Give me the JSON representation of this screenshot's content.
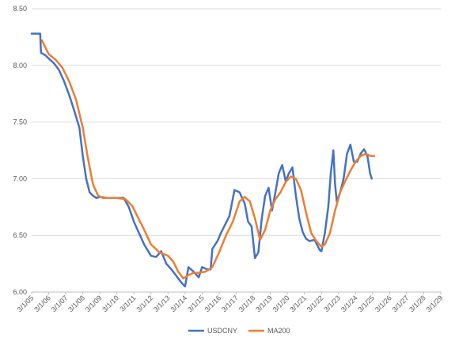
{
  "chart_data": {
    "type": "line",
    "title": "",
    "xlabel": "",
    "ylabel": "",
    "x_range_years": [
      2005.0,
      2029.0
    ],
    "ylim": [
      6.0,
      8.5
    ],
    "y_ticks": [
      {
        "value": 8.5,
        "label": "8.50"
      },
      {
        "value": 8.0,
        "label": "8.00"
      },
      {
        "value": 7.5,
        "label": "7.50"
      },
      {
        "value": 7.0,
        "label": "7.00"
      },
      {
        "value": 6.5,
        "label": "6.50"
      },
      {
        "value": 6.0,
        "label": "6.00"
      }
    ],
    "x_ticks": [
      {
        "year": 2005,
        "label": "3/1/05"
      },
      {
        "year": 2006,
        "label": "3/1/06"
      },
      {
        "year": 2007,
        "label": "3/1/07"
      },
      {
        "year": 2008,
        "label": "3/1/08"
      },
      {
        "year": 2009,
        "label": "3/1/09"
      },
      {
        "year": 2010,
        "label": "3/1/10"
      },
      {
        "year": 2011,
        "label": "3/1/11"
      },
      {
        "year": 2012,
        "label": "3/1/12"
      },
      {
        "year": 2013,
        "label": "3/1/13"
      },
      {
        "year": 2014,
        "label": "3/1/14"
      },
      {
        "year": 2015,
        "label": "3/1/15"
      },
      {
        "year": 2016,
        "label": "3/1/16"
      },
      {
        "year": 2017,
        "label": "3/1/17"
      },
      {
        "year": 2018,
        "label": "3/1/18"
      },
      {
        "year": 2019,
        "label": "3/1/19"
      },
      {
        "year": 2020,
        "label": "3/1/20"
      },
      {
        "year": 2021,
        "label": "3/1/21"
      },
      {
        "year": 2022,
        "label": "3/1/22"
      },
      {
        "year": 2023,
        "label": "3/1/23"
      },
      {
        "year": 2024,
        "label": "3/1/24"
      },
      {
        "year": 2025,
        "label": "3/1/25"
      },
      {
        "year": 2026,
        "label": "3/1/26"
      },
      {
        "year": 2027,
        "label": "3/1/27"
      },
      {
        "year": 2028,
        "label": "3/1/28"
      },
      {
        "year": 2029,
        "label": "3/1/29"
      }
    ],
    "legend_position": "bottom",
    "series": [
      {
        "name": "USDCNY",
        "color": "#4472c4",
        "points": [
          [
            2005.0,
            8.28
          ],
          [
            2005.5,
            8.28
          ],
          [
            2005.55,
            8.11
          ],
          [
            2005.8,
            8.09
          ],
          [
            2006.0,
            8.06
          ],
          [
            2006.3,
            8.02
          ],
          [
            2006.6,
            7.96
          ],
          [
            2006.9,
            7.86
          ],
          [
            2007.2,
            7.74
          ],
          [
            2007.5,
            7.6
          ],
          [
            2007.8,
            7.45
          ],
          [
            2008.0,
            7.2
          ],
          [
            2008.2,
            7.0
          ],
          [
            2008.4,
            6.88
          ],
          [
            2008.6,
            6.85
          ],
          [
            2008.8,
            6.83
          ],
          [
            2009.0,
            6.84
          ],
          [
            2009.5,
            6.83
          ],
          [
            2010.0,
            6.83
          ],
          [
            2010.4,
            6.83
          ],
          [
            2010.7,
            6.75
          ],
          [
            2011.0,
            6.62
          ],
          [
            2011.3,
            6.52
          ],
          [
            2011.6,
            6.42
          ],
          [
            2012.0,
            6.32
          ],
          [
            2012.3,
            6.31
          ],
          [
            2012.6,
            6.36
          ],
          [
            2012.9,
            6.25
          ],
          [
            2013.2,
            6.2
          ],
          [
            2013.5,
            6.14
          ],
          [
            2013.8,
            6.08
          ],
          [
            2014.0,
            6.05
          ],
          [
            2014.2,
            6.22
          ],
          [
            2014.5,
            6.18
          ],
          [
            2014.8,
            6.13
          ],
          [
            2015.0,
            6.22
          ],
          [
            2015.3,
            6.2
          ],
          [
            2015.5,
            6.2
          ],
          [
            2015.6,
            6.38
          ],
          [
            2015.9,
            6.45
          ],
          [
            2016.1,
            6.52
          ],
          [
            2016.3,
            6.58
          ],
          [
            2016.6,
            6.67
          ],
          [
            2016.9,
            6.9
          ],
          [
            2017.2,
            6.88
          ],
          [
            2017.5,
            6.78
          ],
          [
            2017.7,
            6.62
          ],
          [
            2017.9,
            6.58
          ],
          [
            2018.1,
            6.3
          ],
          [
            2018.3,
            6.35
          ],
          [
            2018.5,
            6.65
          ],
          [
            2018.7,
            6.85
          ],
          [
            2018.9,
            6.92
          ],
          [
            2019.1,
            6.72
          ],
          [
            2019.3,
            6.88
          ],
          [
            2019.5,
            7.05
          ],
          [
            2019.7,
            7.12
          ],
          [
            2019.9,
            6.98
          ],
          [
            2020.1,
            7.05
          ],
          [
            2020.3,
            7.1
          ],
          [
            2020.5,
            6.85
          ],
          [
            2020.7,
            6.65
          ],
          [
            2020.9,
            6.53
          ],
          [
            2021.1,
            6.47
          ],
          [
            2021.3,
            6.45
          ],
          [
            2021.6,
            6.46
          ],
          [
            2021.9,
            6.37
          ],
          [
            2022.0,
            6.36
          ],
          [
            2022.2,
            6.52
          ],
          [
            2022.4,
            6.75
          ],
          [
            2022.55,
            7.05
          ],
          [
            2022.7,
            7.25
          ],
          [
            2022.8,
            6.95
          ],
          [
            2022.9,
            6.8
          ],
          [
            2023.1,
            6.88
          ],
          [
            2023.3,
            7.0
          ],
          [
            2023.5,
            7.22
          ],
          [
            2023.7,
            7.3
          ],
          [
            2023.9,
            7.15
          ],
          [
            2024.1,
            7.15
          ],
          [
            2024.3,
            7.22
          ],
          [
            2024.5,
            7.26
          ],
          [
            2024.7,
            7.2
          ],
          [
            2024.85,
            7.05
          ],
          [
            2024.95,
            7.0
          ]
        ]
      },
      {
        "name": "MA200",
        "color": "#ed7d31",
        "points": [
          [
            2005.6,
            8.22
          ],
          [
            2006.0,
            8.1
          ],
          [
            2006.4,
            8.05
          ],
          [
            2006.8,
            7.98
          ],
          [
            2007.2,
            7.86
          ],
          [
            2007.6,
            7.7
          ],
          [
            2008.0,
            7.45
          ],
          [
            2008.3,
            7.18
          ],
          [
            2008.6,
            6.95
          ],
          [
            2008.9,
            6.85
          ],
          [
            2009.2,
            6.83
          ],
          [
            2010.0,
            6.83
          ],
          [
            2010.5,
            6.82
          ],
          [
            2010.9,
            6.76
          ],
          [
            2011.2,
            6.67
          ],
          [
            2011.6,
            6.55
          ],
          [
            2012.0,
            6.42
          ],
          [
            2012.5,
            6.35
          ],
          [
            2013.0,
            6.32
          ],
          [
            2013.3,
            6.27
          ],
          [
            2013.6,
            6.18
          ],
          [
            2013.9,
            6.12
          ],
          [
            2014.2,
            6.15
          ],
          [
            2014.5,
            6.17
          ],
          [
            2014.8,
            6.17
          ],
          [
            2015.2,
            6.18
          ],
          [
            2015.6,
            6.22
          ],
          [
            2016.0,
            6.35
          ],
          [
            2016.4,
            6.5
          ],
          [
            2016.8,
            6.62
          ],
          [
            2017.2,
            6.8
          ],
          [
            2017.5,
            6.84
          ],
          [
            2017.8,
            6.8
          ],
          [
            2018.1,
            6.65
          ],
          [
            2018.4,
            6.46
          ],
          [
            2018.7,
            6.55
          ],
          [
            2019.0,
            6.72
          ],
          [
            2019.3,
            6.82
          ],
          [
            2019.6,
            6.88
          ],
          [
            2019.9,
            6.97
          ],
          [
            2020.2,
            7.02
          ],
          [
            2020.5,
            7.0
          ],
          [
            2020.8,
            6.9
          ],
          [
            2021.1,
            6.7
          ],
          [
            2021.4,
            6.52
          ],
          [
            2021.7,
            6.45
          ],
          [
            2022.0,
            6.4
          ],
          [
            2022.2,
            6.42
          ],
          [
            2022.5,
            6.52
          ],
          [
            2022.8,
            6.72
          ],
          [
            2023.1,
            6.88
          ],
          [
            2023.4,
            6.98
          ],
          [
            2023.7,
            7.07
          ],
          [
            2024.0,
            7.15
          ],
          [
            2024.3,
            7.2
          ],
          [
            2024.6,
            7.22
          ],
          [
            2024.9,
            7.2
          ],
          [
            2025.1,
            7.2
          ]
        ]
      }
    ]
  }
}
